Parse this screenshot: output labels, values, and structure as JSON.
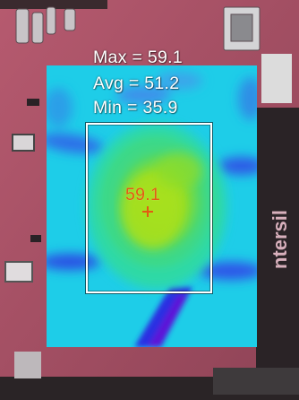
{
  "thermal_readout": {
    "max_label": "Max = 59.1",
    "avg_label": "Avg = 51.2",
    "min_label": "Min = 35.9",
    "hotspot_value": "59.1"
  },
  "background_marking": "ntersil",
  "palette": {
    "hot": "#a8e21a",
    "warm": "#38e08a",
    "mid": "#18d3e3",
    "cool": "#1e3fe6",
    "cold": "#5a0fd6",
    "board": "#b0566c",
    "overlay_text": "#ffffff",
    "hotspot_text": "#e25c12"
  }
}
